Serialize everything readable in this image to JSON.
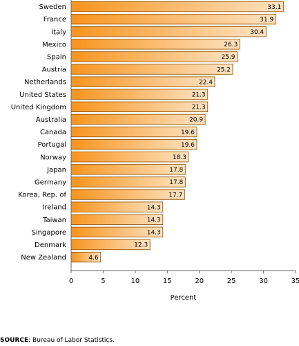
{
  "chart_data": {
    "type": "bar",
    "orientation": "horizontal",
    "categories": [
      "Sweden",
      "France",
      "Italy",
      "Mexico",
      "Spain",
      "Austria",
      "Netherlands",
      "United States",
      "United Kingdom",
      "Australia",
      "Canada",
      "Portugal",
      "Norway",
      "Japan",
      "Germany",
      "Korea, Rep. of",
      "Ireland",
      "Taiwan",
      "Singapore",
      "Denmark",
      "New Zealand"
    ],
    "values": [
      33.1,
      31.9,
      30.4,
      26.3,
      25.9,
      25.2,
      22.4,
      21.3,
      21.3,
      20.9,
      19.6,
      19.6,
      18.3,
      17.8,
      17.8,
      17.7,
      14.3,
      14.3,
      14.3,
      12.3,
      4.6
    ],
    "value_labels": [
      "33.1",
      "31.9",
      "30.4",
      "26.3",
      "25.9",
      "25.2",
      "22.4",
      "21.3",
      "21.3",
      "20.9",
      "19.6",
      "19.6",
      "18.3",
      "17.8",
      "17.8",
      "17.7",
      "14.3",
      "14.3",
      "14.3",
      "12.3",
      "4.6"
    ],
    "xticks": [
      "0",
      "5",
      "10",
      "15",
      "20",
      "25",
      "30",
      "35"
    ],
    "xlim": [
      0,
      35
    ],
    "xlabel": "Percent",
    "grid": false,
    "colors": {
      "bar_left": "#f7941d",
      "bar_right": "#fde3c2",
      "bar_stroke": "#8a4a00",
      "axis": "#666666"
    }
  },
  "source": {
    "label": "SOURCE",
    "text": ": Bureau of Labor Statistics."
  }
}
